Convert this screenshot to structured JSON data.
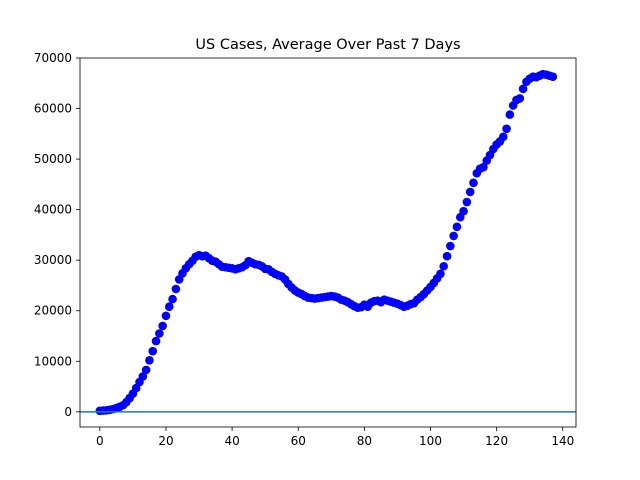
{
  "chart_data": {
    "type": "scatter",
    "title": "US Cases, Average Over Past 7 Days",
    "xlabel": "",
    "ylabel": "",
    "xlim": [
      -6,
      144
    ],
    "ylim": [
      -3000,
      70000
    ],
    "x_ticks": [
      0,
      20,
      40,
      60,
      80,
      100,
      120,
      140
    ],
    "y_ticks": [
      0,
      10000,
      20000,
      30000,
      40000,
      50000,
      60000,
      70000
    ],
    "grid": false,
    "series": [
      {
        "marker_color": "#0000ff",
        "x": [
          0,
          1,
          2,
          3,
          4,
          5,
          6,
          7,
          8,
          9,
          10,
          11,
          12,
          13,
          14,
          15,
          16,
          17,
          18,
          19,
          20,
          21,
          22,
          23,
          24,
          25,
          26,
          27,
          28,
          29,
          30,
          31,
          32,
          33,
          34,
          35,
          36,
          37,
          38,
          39,
          40,
          41,
          42,
          43,
          44,
          45,
          46,
          47,
          48,
          49,
          50,
          51,
          52,
          53,
          54,
          55,
          56,
          57,
          58,
          59,
          60,
          61,
          62,
          63,
          64,
          65,
          66,
          67,
          68,
          69,
          70,
          71,
          72,
          73,
          74,
          75,
          76,
          77,
          78,
          79,
          80,
          81,
          82,
          83,
          84,
          85,
          86,
          87,
          88,
          89,
          90,
          91,
          92,
          93,
          94,
          95,
          96,
          97,
          98,
          99,
          100,
          101,
          102,
          103,
          104,
          105,
          106,
          107,
          108,
          109,
          110,
          111,
          112,
          113,
          114,
          115,
          116,
          117,
          118,
          119,
          120,
          121,
          122,
          123,
          124,
          125,
          126,
          127,
          128,
          129,
          130,
          131,
          132,
          133,
          134,
          135,
          136,
          137
        ],
        "y": [
          200,
          250,
          300,
          400,
          550,
          750,
          1000,
          1300,
          1900,
          2700,
          3600,
          4700,
          5900,
          7000,
          8300,
          10200,
          12000,
          14000,
          15500,
          17000,
          19000,
          20800,
          22300,
          24300,
          26200,
          27400,
          28400,
          29200,
          29900,
          30700,
          31000,
          30800,
          30900,
          30400,
          29900,
          29700,
          29200,
          28700,
          28600,
          28500,
          28400,
          28200,
          28400,
          28600,
          29000,
          29800,
          29500,
          29200,
          29100,
          28800,
          28300,
          28200,
          27700,
          27300,
          27000,
          26800,
          26200,
          25300,
          24600,
          24000,
          23600,
          23300,
          22900,
          22600,
          22500,
          22400,
          22500,
          22600,
          22700,
          22800,
          22900,
          22800,
          22600,
          22200,
          22000,
          21700,
          21300,
          20900,
          20600,
          20700,
          21200,
          20800,
          21600,
          21900,
          22000,
          21700,
          22200,
          22000,
          21800,
          21600,
          21400,
          21100,
          20800,
          21000,
          21300,
          21500,
          22200,
          22700,
          23300,
          24000,
          24700,
          25500,
          26400,
          27300,
          28800,
          30800,
          32800,
          34800,
          36600,
          38500,
          39700,
          41500,
          43500,
          45300,
          47200,
          48100,
          48400,
          49700,
          50800,
          52000,
          52900,
          53500,
          54400,
          56000,
          58800,
          60600,
          61700,
          62000,
          63900,
          65300,
          65900,
          66300,
          66200,
          66500,
          66800,
          66700,
          66500,
          66300
        ]
      }
    ],
    "reference_line": {
      "y": 0,
      "color": "#1f77b4"
    }
  }
}
